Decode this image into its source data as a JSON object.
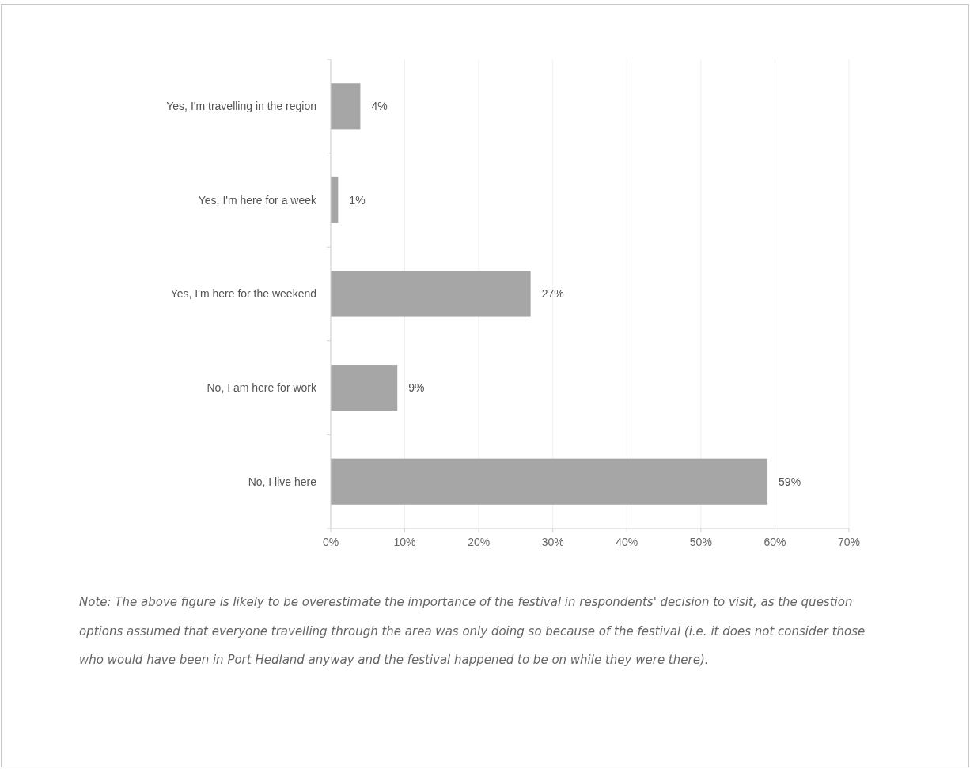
{
  "chart_data": {
    "type": "bar",
    "orientation": "horizontal",
    "categories": [
      "Yes, I'm travelling in the region",
      "Yes, I'm here for a week",
      "Yes, I'm here for the weekend",
      "No, I am here for work",
      "No, I live here"
    ],
    "values": [
      4,
      1,
      27,
      9,
      59
    ],
    "color": "#a6a6a6",
    "value_labels": [
      "4%",
      "1%",
      "27%",
      "9%",
      "59%"
    ],
    "xlim": [
      0,
      70
    ],
    "xticks": [
      {
        "value": 0,
        "label": "0%"
      },
      {
        "value": 10,
        "label": "10%"
      },
      {
        "value": 20,
        "label": "20%"
      },
      {
        "value": 30,
        "label": "30%"
      },
      {
        "value": 40,
        "label": "40%"
      },
      {
        "value": 50,
        "label": "50%"
      },
      {
        "value": 60,
        "label": "60%"
      },
      {
        "value": 70,
        "label": "70%"
      }
    ],
    "grid": "x",
    "annotations": [
      "Note: The above figure is likely to be overestimate the importance of the festival in respondents' decision to visit, as the question options assumed that everyone travelling through the area was only doing so because of the festival (i.e. it does not consider those who would have been in Port Hedland anyway and the festival happened to be on while they were there)."
    ]
  }
}
